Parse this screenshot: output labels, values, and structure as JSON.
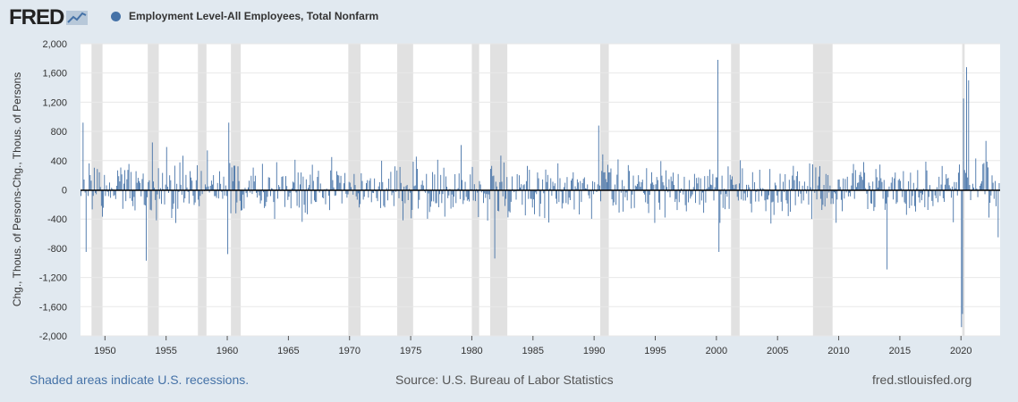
{
  "header": {
    "logo_text": "FRED",
    "series_title": "Employment Level-All Employees, Total Nonfarm",
    "series_color": "#4572a7"
  },
  "footer": {
    "recessions_note": "Shaded areas indicate U.S. recessions.",
    "source": "Source: U.S. Bureau of Labor Statistics",
    "site": "fred.stlouisfed.org"
  },
  "chart_data": {
    "type": "bar",
    "ylabel": "Chg., Thous. of Persons-Chg., Thous. of Persons",
    "xlabel": "",
    "ylim": [
      -2000,
      2000
    ],
    "xlim": [
      1948.0,
      2023.2
    ],
    "y_ticks": [
      "2,000",
      "1,600",
      "1,200",
      "800",
      "400",
      "0",
      "-400",
      "-800",
      "-1,200",
      "-1,600",
      "-2,000"
    ],
    "y_tick_values": [
      2000,
      1600,
      1200,
      800,
      400,
      0,
      -400,
      -800,
      -1200,
      -1600,
      -2000
    ],
    "x_ticks": [
      "1950",
      "1955",
      "1960",
      "1965",
      "1970",
      "1975",
      "1980",
      "1985",
      "1990",
      "1995",
      "2000",
      "2005",
      "2010",
      "2015",
      "2020"
    ],
    "x_tick_values": [
      1950,
      1955,
      1960,
      1965,
      1970,
      1975,
      1980,
      1985,
      1990,
      1995,
      2000,
      2005,
      2010,
      2015,
      2020
    ],
    "bar_color": "#4572a7",
    "grid": true,
    "recessions": [
      [
        1948.9,
        1949.8
      ],
      [
        1953.5,
        1954.4
      ],
      [
        1957.6,
        1958.3
      ],
      [
        1960.3,
        1961.1
      ],
      [
        1969.9,
        1970.9
      ],
      [
        1973.9,
        1975.2
      ],
      [
        1980.0,
        1980.6
      ],
      [
        1981.5,
        1982.9
      ],
      [
        1990.5,
        1991.2
      ],
      [
        2001.2,
        2001.9
      ],
      [
        2007.9,
        2009.5
      ],
      [
        2020.1,
        2020.3
      ]
    ],
    "series": [
      {
        "name": "Employment Level-All Employees, Total Nonfarm",
        "frequency": "monthly",
        "notable_values": [
          {
            "x": 1948.2,
            "y": 920
          },
          {
            "x": 1948.4,
            "y": -850
          },
          {
            "x": 1953.3,
            "y": -970
          },
          {
            "x": 1960.1,
            "y": 920
          },
          {
            "x": 1960.0,
            "y": -880
          },
          {
            "x": 1990.3,
            "y": 880
          },
          {
            "x": 1981.8,
            "y": -940
          },
          {
            "x": 2000.1,
            "y": 1780
          },
          {
            "x": 2000.2,
            "y": -850
          },
          {
            "x": 2013.9,
            "y": -1090
          },
          {
            "x": 2020.0,
            "y": -1880
          },
          {
            "x": 2020.1,
            "y": -1700
          },
          {
            "x": 2020.2,
            "y": 1250
          },
          {
            "x": 2020.4,
            "y": 1680
          },
          {
            "x": 2020.6,
            "y": 1500
          },
          {
            "x": 2022.0,
            "y": 670
          },
          {
            "x": 2023.0,
            "y": -650
          }
        ],
        "typical_amplitude": 400
      }
    ]
  }
}
